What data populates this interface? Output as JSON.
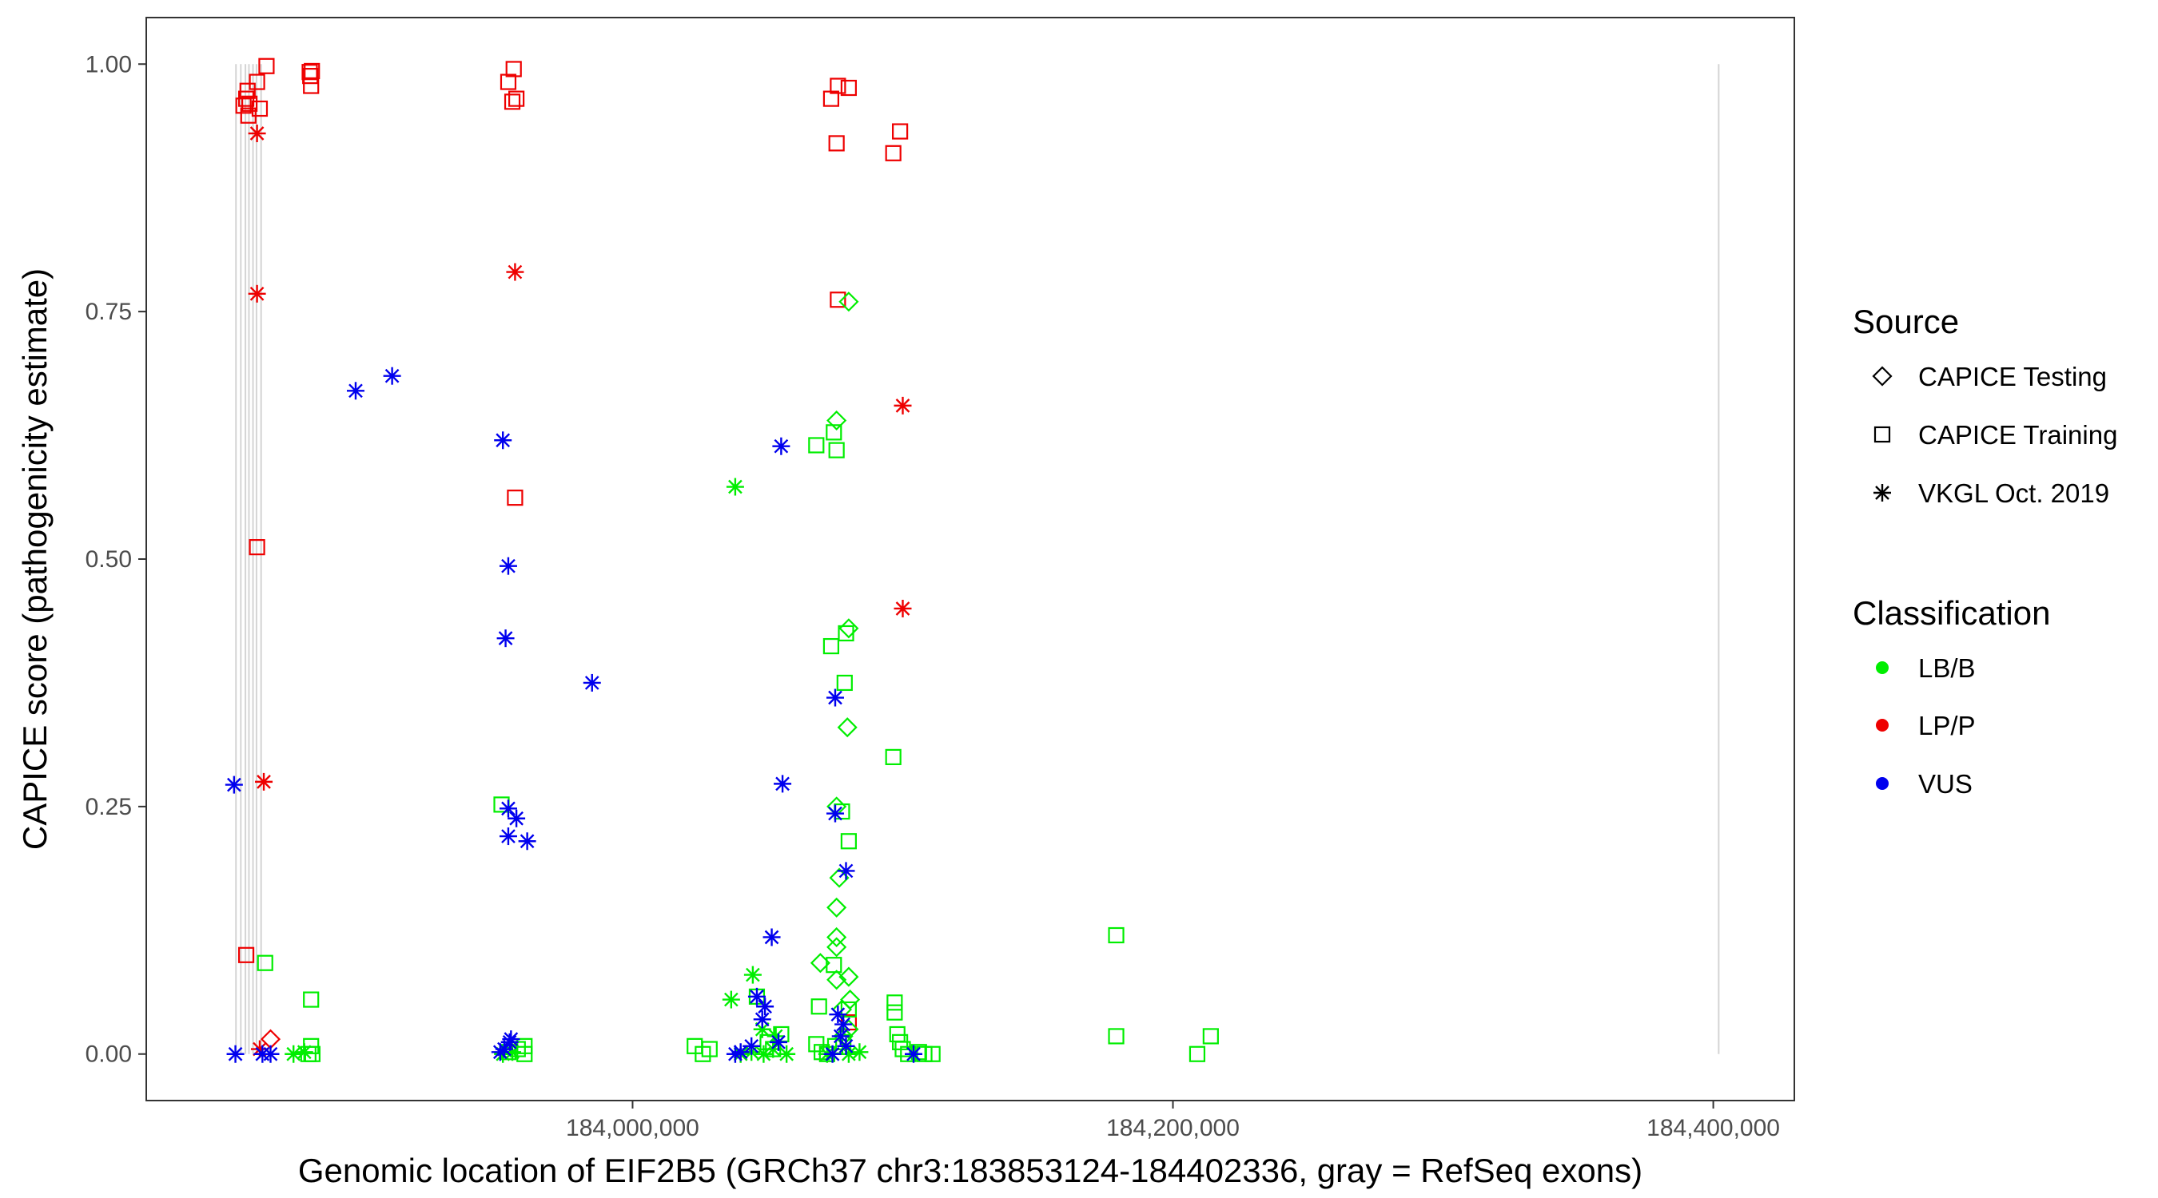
{
  "chart_data": {
    "type": "scatter",
    "title": "",
    "xlabel": "Genomic location of EIF2B5 (GRCh37 chr3:183853124-184402336, gray = RefSeq exons)",
    "ylabel": "CAPICE score (pathogenicity estimate)",
    "xlim": [
      183820000,
      184430000
    ],
    "ylim": [
      -0.047,
      1.047
    ],
    "x_ticks": [
      184000000,
      184200000,
      184400000
    ],
    "x_tick_labels": [
      "184,000,000",
      "184,200,000",
      "184,400,000"
    ],
    "y_ticks": [
      0,
      0.25,
      0.5,
      0.75,
      1
    ],
    "y_tick_labels": [
      "0.00",
      "0.25",
      "0.50",
      "0.75",
      "1.00"
    ],
    "grid": false,
    "exon_positions": [
      183853200,
      183855000,
      183856700,
      183858000,
      183859500,
      183860800,
      183862500,
      184402000
    ],
    "legend": {
      "source_title": "Source",
      "source_items": [
        {
          "label": "CAPICE Testing",
          "shape": "diamond"
        },
        {
          "label": "CAPICE Training",
          "shape": "square"
        },
        {
          "label": "VKGL Oct. 2019",
          "shape": "asterisk"
        }
      ],
      "classification_title": "Classification",
      "classification_items": [
        {
          "label": "LB/B",
          "color": "#00ee00"
        },
        {
          "label": "LP/P",
          "color": "#ee0000"
        },
        {
          "label": "VUS",
          "color": "#0000ee"
        }
      ]
    },
    "colors": {
      "LB/B": "#00ee00",
      "LP/P": "#ee0000",
      "VUS": "#0000ee"
    },
    "series": [
      {
        "name": "CAPICE Training / LP/P",
        "source": "square",
        "class": "LP/P",
        "points": [
          [
            183856000,
            0.958
          ],
          [
            183857000,
            0.965
          ],
          [
            183857500,
            0.973
          ],
          [
            183857800,
            0.948
          ],
          [
            183858200,
            0.96
          ],
          [
            183861000,
            0.982
          ],
          [
            183862000,
            0.955
          ],
          [
            183864500,
            0.998
          ],
          [
            183880500,
            0.992
          ],
          [
            183880700,
            0.988
          ],
          [
            183881000,
            0.978
          ],
          [
            183881300,
            0.993
          ],
          [
            183954000,
            0.982
          ],
          [
            183956000,
            0.995
          ],
          [
            183955500,
            0.962
          ],
          [
            183957000,
            0.965
          ],
          [
            184073500,
            0.965
          ],
          [
            184076000,
            0.978
          ],
          [
            184080000,
            0.976
          ],
          [
            184075500,
            0.92
          ],
          [
            184096500,
            0.91
          ],
          [
            184099000,
            0.932
          ],
          [
            184076000,
            0.762
          ],
          [
            183956500,
            0.562
          ],
          [
            183861000,
            0.512
          ],
          [
            183857000,
            0.1
          ],
          [
            184080000,
            0.032
          ]
        ]
      },
      {
        "name": "CAPICE Testing / LP/P",
        "source": "diamond",
        "class": "LP/P",
        "points": [
          [
            183866000,
            0.015
          ]
        ]
      },
      {
        "name": "VKGL / LP/P",
        "source": "asterisk",
        "class": "LP/P",
        "points": [
          [
            183861000,
            0.93
          ],
          [
            183861000,
            0.768
          ],
          [
            183863500,
            0.275
          ],
          [
            183862000,
            0.005
          ],
          [
            183956500,
            0.79
          ],
          [
            184100000,
            0.655
          ],
          [
            184100000,
            0.45
          ]
        ]
      },
      {
        "name": "CAPICE Training / LB/B",
        "source": "square",
        "class": "LB/B",
        "points": [
          [
            183864000,
            0.092
          ],
          [
            183881000,
            0.055
          ],
          [
            183881000,
            0.008
          ],
          [
            183880000,
            0.0
          ],
          [
            183881500,
            0.0
          ],
          [
            183951500,
            0.252
          ],
          [
            183954000,
            0.002
          ],
          [
            183957500,
            0.005
          ],
          [
            183960000,
            0.008
          ],
          [
            183960000,
            0.0
          ],
          [
            184023000,
            0.008
          ],
          [
            184026000,
            0.0
          ],
          [
            184028500,
            0.005
          ],
          [
            184046000,
            0.058
          ],
          [
            184050000,
            0.012
          ],
          [
            184052000,
            0.005
          ],
          [
            184055000,
            0.02
          ],
          [
            184068000,
            0.615
          ],
          [
            184075500,
            0.61
          ],
          [
            184074500,
            0.628
          ],
          [
            184073500,
            0.412
          ],
          [
            184078500,
            0.375
          ],
          [
            184079000,
            0.425
          ],
          [
            184096500,
            0.3
          ],
          [
            184077500,
            0.245
          ],
          [
            184080000,
            0.215
          ],
          [
            184074500,
            0.09
          ],
          [
            184069000,
            0.048
          ],
          [
            184072000,
            0.0
          ],
          [
            184075000,
            0.008
          ],
          [
            184078000,
            0.012
          ],
          [
            184080000,
            0.045
          ],
          [
            184097000,
            0.052
          ],
          [
            184097000,
            0.042
          ],
          [
            184098000,
            0.02
          ],
          [
            184099000,
            0.012
          ],
          [
            184100000,
            0.005
          ],
          [
            184102000,
            0.0
          ],
          [
            184108000,
            0.0
          ],
          [
            184111000,
            0.0
          ],
          [
            184106000,
            0.002
          ],
          [
            184068000,
            0.01
          ],
          [
            184070000,
            0.002
          ],
          [
            184179000,
            0.12
          ],
          [
            184179000,
            0.018
          ],
          [
            184209000,
            0.0
          ],
          [
            184214000,
            0.018
          ]
        ]
      },
      {
        "name": "CAPICE Testing / LB/B",
        "source": "diamond",
        "class": "LB/B",
        "points": [
          [
            184080000,
            0.76
          ],
          [
            184075500,
            0.64
          ],
          [
            184080000,
            0.43
          ],
          [
            184079500,
            0.33
          ],
          [
            184075500,
            0.25
          ],
          [
            184076500,
            0.178
          ],
          [
            184075500,
            0.148
          ],
          [
            184075500,
            0.118
          ],
          [
            184075500,
            0.108
          ],
          [
            184069500,
            0.092
          ],
          [
            184075500,
            0.075
          ],
          [
            184080000,
            0.078
          ],
          [
            184080500,
            0.055
          ],
          [
            184077500,
            0.045
          ],
          [
            184080000,
            0.025
          ],
          [
            184078000,
            0.018
          ]
        ]
      },
      {
        "name": "VKGL / LB/B",
        "source": "asterisk",
        "class": "LB/B",
        "points": [
          [
            184038000,
            0.573
          ],
          [
            184044500,
            0.08
          ],
          [
            184036500,
            0.055
          ],
          [
            184048000,
            0.025
          ],
          [
            184053000,
            0.018
          ],
          [
            183874500,
            0.0
          ],
          [
            183878500,
            0.002
          ],
          [
            183952000,
            0.0
          ],
          [
            183955500,
            0.002
          ],
          [
            184040000,
            0.0
          ],
          [
            184044000,
            0.002
          ],
          [
            184048500,
            0.0
          ],
          [
            184052000,
            0.005
          ],
          [
            184057000,
            0.0
          ],
          [
            184072000,
            0.0
          ],
          [
            184084000,
            0.002
          ],
          [
            184080000,
            0.0
          ]
        ]
      },
      {
        "name": "VKGL / VUS",
        "source": "asterisk",
        "class": "VUS",
        "points": [
          [
            183897500,
            0.67
          ],
          [
            183911000,
            0.685
          ],
          [
            183952000,
            0.62
          ],
          [
            184055000,
            0.614
          ],
          [
            183954000,
            0.493
          ],
          [
            183953000,
            0.42
          ],
          [
            183985000,
            0.375
          ],
          [
            183852500,
            0.272
          ],
          [
            184055500,
            0.273
          ],
          [
            184075000,
            0.36
          ],
          [
            184075000,
            0.243
          ],
          [
            183954000,
            0.248
          ],
          [
            183957000,
            0.238
          ],
          [
            183954000,
            0.22
          ],
          [
            183961000,
            0.215
          ],
          [
            184079000,
            0.185
          ],
          [
            184051500,
            0.118
          ],
          [
            184046000,
            0.058
          ],
          [
            184049000,
            0.048
          ],
          [
            184048000,
            0.035
          ],
          [
            184054000,
            0.012
          ],
          [
            184044000,
            0.008
          ],
          [
            184040000,
            0.002
          ],
          [
            184038000,
            0.0
          ],
          [
            184076000,
            0.04
          ],
          [
            184078000,
            0.03
          ],
          [
            184077000,
            0.018
          ],
          [
            184079000,
            0.008
          ],
          [
            184074000,
            0.0
          ],
          [
            183952500,
            0.005
          ],
          [
            183954500,
            0.012
          ],
          [
            183955000,
            0.015
          ],
          [
            183951000,
            0.002
          ],
          [
            183853000,
            0.0
          ],
          [
            183863000,
            0.0
          ],
          [
            183866000,
            0.0
          ],
          [
            184104000,
            0.0
          ]
        ]
      }
    ]
  }
}
